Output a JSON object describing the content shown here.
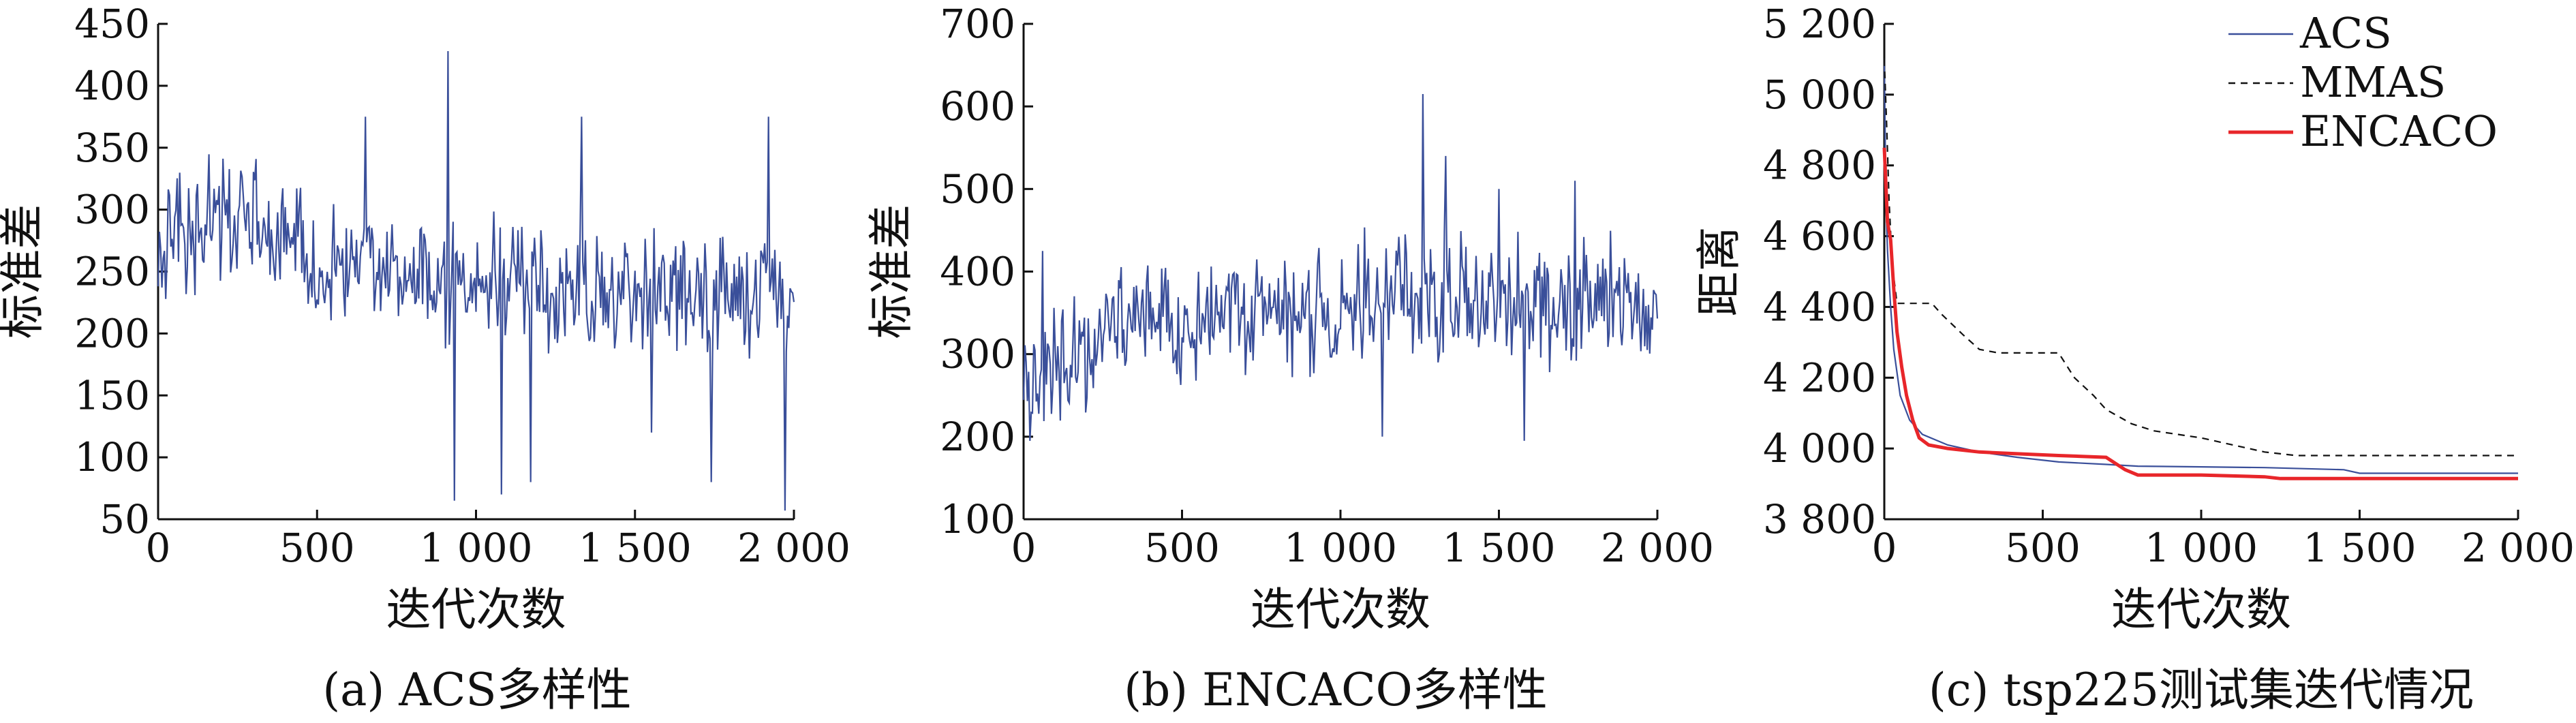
{
  "chart_data": [
    {
      "type": "line",
      "caption": "(a)  ACS多样性",
      "xlabel": "迭代次数",
      "ylabel": "标准差",
      "xlim": [
        0,
        2000
      ],
      "ylim": [
        50,
        450
      ],
      "xticks": [
        0,
        500,
        1000,
        1500,
        2000
      ],
      "xtick_labels": [
        "0",
        "500",
        "1 000",
        "1 500",
        "2 000"
      ],
      "yticks": [
        50,
        100,
        150,
        200,
        250,
        300,
        350,
        400,
        450
      ],
      "ytick_labels": [
        "50",
        "100",
        "150",
        "200",
        "250",
        "300",
        "350",
        "400",
        "450"
      ],
      "series": [
        {
          "color": "#3a4f9a",
          "x_step": 25,
          "values": [
            255,
            285,
            300,
            272,
            268,
            290,
            298,
            287,
            305,
            260,
            296,
            284,
            294,
            282,
            262,
            277,
            273,
            276,
            258,
            266,
            248,
            252,
            270,
            249,
            258,
            257,
            260,
            244,
            255,
            247,
            234,
            239,
            247,
            257,
            232,
            240,
            233,
            256,
            249,
            254,
            235,
            245,
            251,
            234,
            250,
            244,
            236,
            228,
            240,
            228,
            230,
            232,
            250,
            243,
            236,
            230,
            232,
            223,
            248,
            233,
            228,
            245,
            237,
            245,
            227,
            232,
            241,
            238,
            229,
            226,
            232,
            232,
            224,
            239,
            220,
            226,
            244,
            237,
            242,
            228,
            230
          ],
          "spikes": [
            [
              650,
              375
            ],
            [
              910,
              428
            ],
            [
              930,
              65
            ],
            [
              1080,
              70
            ],
            [
              1170,
              80
            ],
            [
              1330,
              375
            ],
            [
              1550,
              120
            ],
            [
              1740,
              80
            ],
            [
              1970,
              57
            ],
            [
              1920,
              375
            ]
          ]
        }
      ]
    },
    {
      "type": "line",
      "caption": "(b) ENCACO多样性",
      "xlabel": "迭代次数",
      "ylabel": "标准差",
      "xlim": [
        0,
        2000
      ],
      "ylim": [
        100,
        700
      ],
      "xticks": [
        0,
        500,
        1000,
        1500,
        2000
      ],
      "xtick_labels": [
        "0",
        "500",
        "1 000",
        "1 500",
        "2 000"
      ],
      "yticks": [
        100,
        200,
        300,
        400,
        500,
        600,
        700
      ],
      "ytick_labels": [
        "100",
        "200",
        "300",
        "400",
        "500",
        "600",
        "700"
      ],
      "series": [
        {
          "color": "#3a4f9a",
          "x_step": 25,
          "values": [
            270,
            265,
            282,
            288,
            275,
            290,
            300,
            296,
            289,
            302,
            320,
            337,
            335,
            344,
            350,
            347,
            332,
            342,
            340,
            331,
            351,
            330,
            348,
            352,
            345,
            356,
            359,
            349,
            330,
            353,
            352,
            351,
            358,
            340,
            348,
            355,
            340,
            358,
            344,
            344,
            357,
            366,
            362,
            376,
            351,
            365,
            372,
            368,
            380,
            367,
            369,
            372,
            355,
            380,
            384,
            376,
            360,
            361,
            361,
            375,
            371,
            370,
            376,
            358,
            359,
            365,
            354,
            368,
            354,
            354,
            374,
            351,
            361,
            381,
            381,
            355,
            355,
            352,
            355,
            365,
            350
          ],
          "spikes": [
            [
              1260,
              615
            ],
            [
              1330,
              540
            ],
            [
              1500,
              500
            ],
            [
              1740,
              510
            ],
            [
              1130,
              200
            ],
            [
              1580,
              195
            ],
            [
              60,
              425
            ],
            [
              20,
              195
            ]
          ]
        }
      ]
    },
    {
      "type": "line",
      "caption": "(c)  tsp225测试集迭代情况",
      "xlabel": "迭代次数",
      "ylabel": "距离",
      "xlim": [
        0,
        2000
      ],
      "ylim": [
        3800,
        5200
      ],
      "xticks": [
        0,
        500,
        1000,
        1500,
        2000
      ],
      "xtick_labels": [
        "0",
        "500",
        "1 000",
        "1 500",
        "2 000"
      ],
      "yticks": [
        3800,
        4000,
        4200,
        4400,
        4600,
        4800,
        5000,
        5200
      ],
      "ytick_labels": [
        "3 800",
        "4 000",
        "4 200",
        "4 400",
        "4 600",
        "4 800",
        "5 000",
        "5 200"
      ],
      "legend": "top-right",
      "series": [
        {
          "name": "ACS",
          "color": "#3a4f9a",
          "dash": "none",
          "points": [
            [
              0,
              5100
            ],
            [
              5,
              4700
            ],
            [
              10,
              4560
            ],
            [
              20,
              4400
            ],
            [
              30,
              4280
            ],
            [
              50,
              4150
            ],
            [
              80,
              4080
            ],
            [
              120,
              4040
            ],
            [
              200,
              4010
            ],
            [
              300,
              3990
            ],
            [
              420,
              3975
            ],
            [
              550,
              3962
            ],
            [
              700,
              3955
            ],
            [
              800,
              3950
            ],
            [
              1000,
              3948
            ],
            [
              1200,
              3946
            ],
            [
              1450,
              3940
            ],
            [
              1500,
              3930
            ],
            [
              2000,
              3930
            ]
          ]
        },
        {
          "name": "MMAS",
          "color": "#111111",
          "dash": "10 8",
          "points": [
            [
              0,
              5100
            ],
            [
              8,
              4900
            ],
            [
              15,
              4700
            ],
            [
              25,
              4520
            ],
            [
              40,
              4410
            ],
            [
              150,
              4410
            ],
            [
              180,
              4380
            ],
            [
              250,
              4320
            ],
            [
              300,
              4280
            ],
            [
              360,
              4270
            ],
            [
              550,
              4270
            ],
            [
              600,
              4200
            ],
            [
              660,
              4150
            ],
            [
              700,
              4110
            ],
            [
              740,
              4090
            ],
            [
              780,
              4070
            ],
            [
              850,
              4050
            ],
            [
              1000,
              4030
            ],
            [
              1100,
              4010
            ],
            [
              1200,
              3990
            ],
            [
              1300,
              3980
            ],
            [
              2000,
              3980
            ]
          ]
        },
        {
          "name": "ENCACO",
          "color": "#e8262a",
          "dash": "none",
          "points": [
            [
              0,
              4850
            ],
            [
              10,
              4640
            ],
            [
              20,
              4590
            ],
            [
              30,
              4450
            ],
            [
              40,
              4330
            ],
            [
              55,
              4230
            ],
            [
              70,
              4150
            ],
            [
              90,
              4080
            ],
            [
              110,
              4030
            ],
            [
              140,
              4010
            ],
            [
              200,
              4000
            ],
            [
              300,
              3990
            ],
            [
              420,
              3985
            ],
            [
              550,
              3980
            ],
            [
              700,
              3975
            ],
            [
              760,
              3940
            ],
            [
              800,
              3925
            ],
            [
              1000,
              3925
            ],
            [
              1200,
              3920
            ],
            [
              1250,
              3915
            ],
            [
              2000,
              3915
            ]
          ]
        }
      ]
    }
  ]
}
